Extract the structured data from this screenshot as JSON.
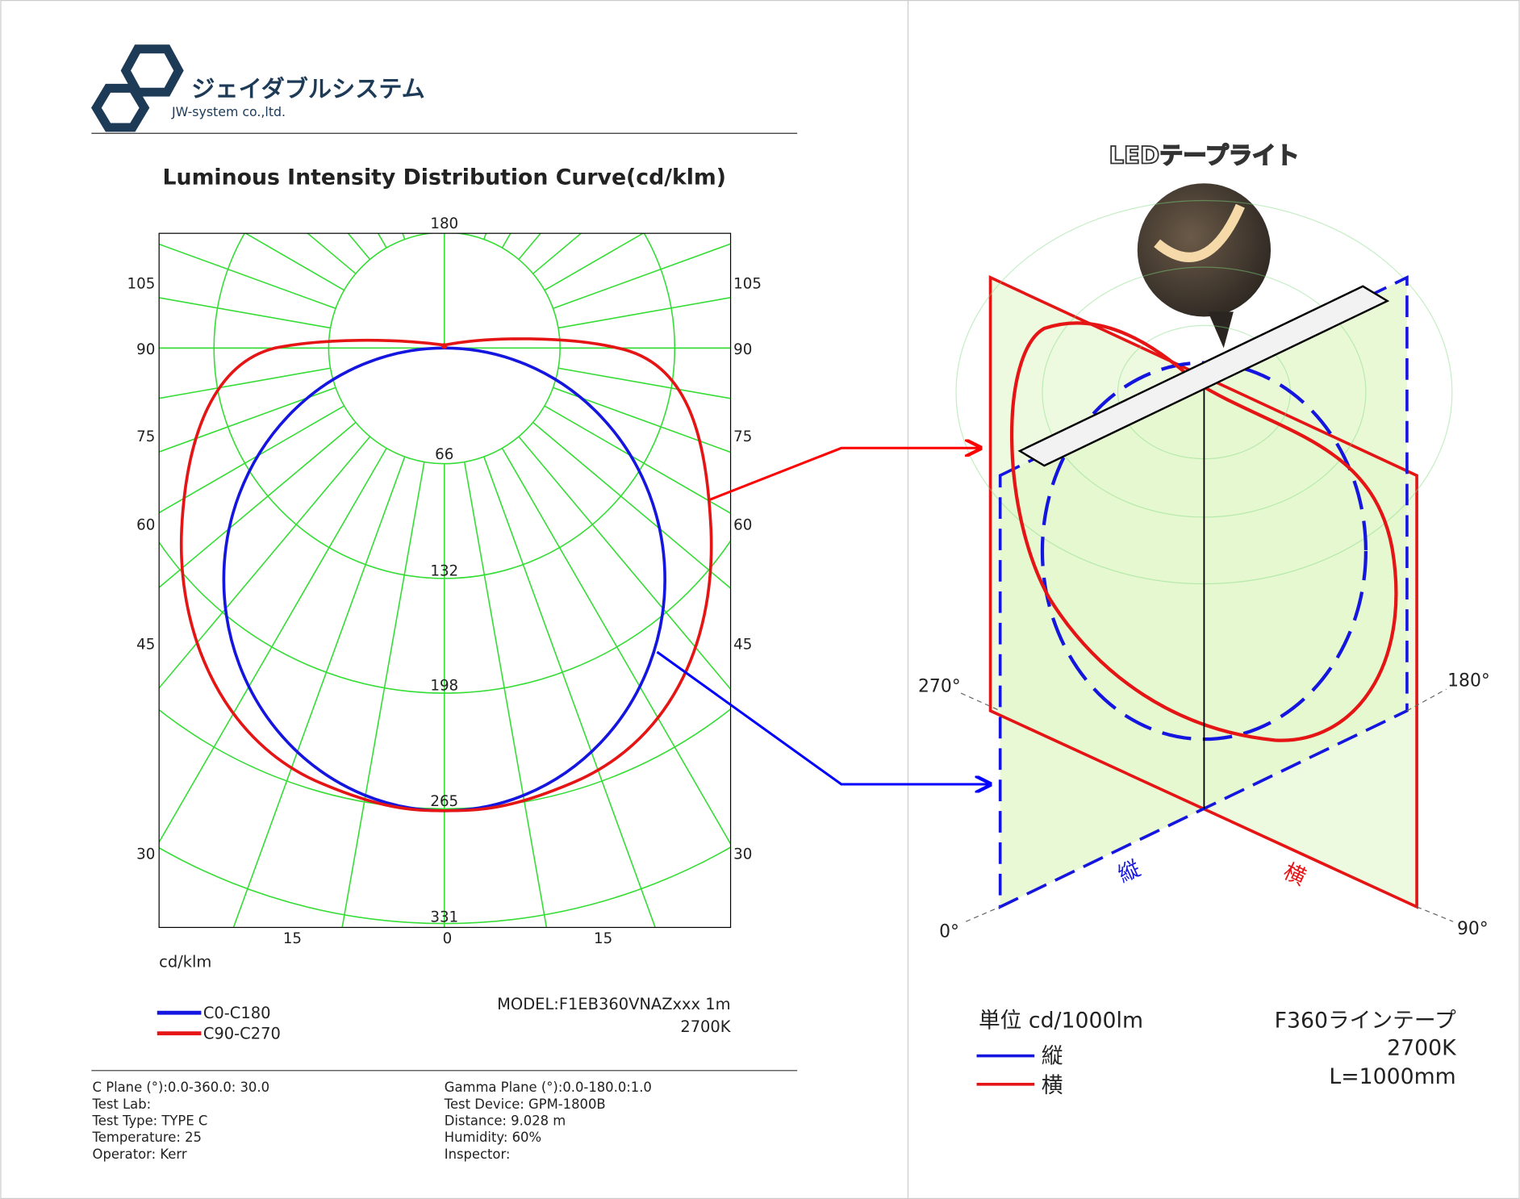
{
  "logo": {
    "name": "ジェイダブルシステム",
    "company": "JW-system co.,ltd."
  },
  "report": {
    "title": "Luminous Intensity Distribution Curve(cd/klm)",
    "ring_labels": [
      "180",
      "66",
      "132",
      "198",
      "265",
      "331"
    ],
    "side_labels": [
      "105",
      "90",
      "75",
      "60",
      "45",
      "30"
    ],
    "bottom_labels": [
      "15",
      "0",
      "15"
    ],
    "unit": "cd/klm",
    "legend": [
      "C0-C180",
      "C90-C270"
    ],
    "model": "MODEL:F1EB360VNAZxxx 1m",
    "cct": "2700K",
    "info_left": [
      "C Plane (°):0.0-360.0: 30.0",
      "Test Lab:",
      "Test Type: TYPE C",
      "Temperature: 25",
      "Operator: Kerr"
    ],
    "info_right": [
      "Gamma Plane (°):0.0-180.0:1.0",
      "Test Device: GPM-1800B",
      "Distance: 9.028 m",
      "Humidity: 60%",
      "Inspector:"
    ]
  },
  "diagram": {
    "title": "LEDテープライト",
    "angles": [
      "270°",
      "180°",
      "0°",
      "90°"
    ],
    "plane_labels": [
      "縦",
      "横"
    ],
    "unit": "単位 cd/1000lm",
    "legend": [
      "縦",
      "横"
    ],
    "product": [
      "F360ラインテープ",
      "2700K",
      "L=1000mm"
    ]
  }
}
